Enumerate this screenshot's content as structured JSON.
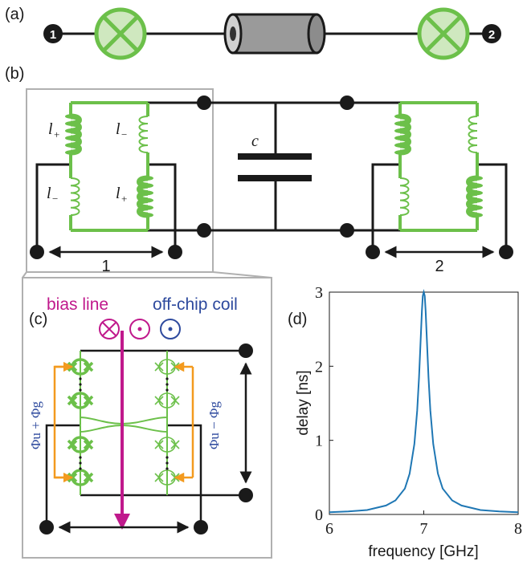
{
  "panel_a": {
    "label": "(a)",
    "port1": "1",
    "port2": "2"
  },
  "panel_b": {
    "label": "(b)",
    "l_plus_a": "l",
    "l_plus_sub": "+",
    "l_minus_a": "l",
    "l_minus_sub": "−",
    "cap_label": "c",
    "port1": "1",
    "port2": "2"
  },
  "panel_c": {
    "label": "(c)",
    "bias_line": "bias line",
    "off_chip_coil": "off-chip coil",
    "flux_left": "Φu + Φg",
    "flux_right": "Φu − Φg"
  },
  "panel_d": {
    "label": "(d)",
    "xlabel": "frequency [GHz]",
    "ylabel": "delay [ns]"
  },
  "colors": {
    "green": "#6cc04a",
    "green_fill": "#cfe8bf",
    "magenta": "#c0198c",
    "blue": "#2e4a9e",
    "orange": "#f39a1e",
    "curve": "#1f77b4",
    "frame": "#b0b0b0"
  },
  "chart_data": {
    "type": "line",
    "title": "",
    "xlabel": "frequency [GHz]",
    "ylabel": "delay [ns]",
    "xlim": [
      6,
      8
    ],
    "ylim": [
      0,
      3
    ],
    "xticks": [
      6,
      7,
      8
    ],
    "yticks": [
      0,
      1,
      2,
      3
    ],
    "grid": false,
    "series": [
      {
        "color": "#1f77b4",
        "x": [
          6.0,
          6.2,
          6.4,
          6.6,
          6.7,
          6.8,
          6.85,
          6.9,
          6.93,
          6.95,
          6.97,
          6.98,
          6.99,
          7.0,
          7.01,
          7.02,
          7.03,
          7.05,
          7.07,
          7.1,
          7.15,
          7.2,
          7.3,
          7.4,
          7.6,
          7.8,
          8.0
        ],
        "y": [
          0.03,
          0.04,
          0.06,
          0.12,
          0.19,
          0.35,
          0.55,
          0.95,
          1.4,
          1.85,
          2.45,
          2.75,
          2.95,
          3.0,
          2.95,
          2.75,
          2.45,
          1.85,
          1.4,
          0.95,
          0.55,
          0.35,
          0.19,
          0.12,
          0.06,
          0.04,
          0.03
        ]
      }
    ]
  }
}
